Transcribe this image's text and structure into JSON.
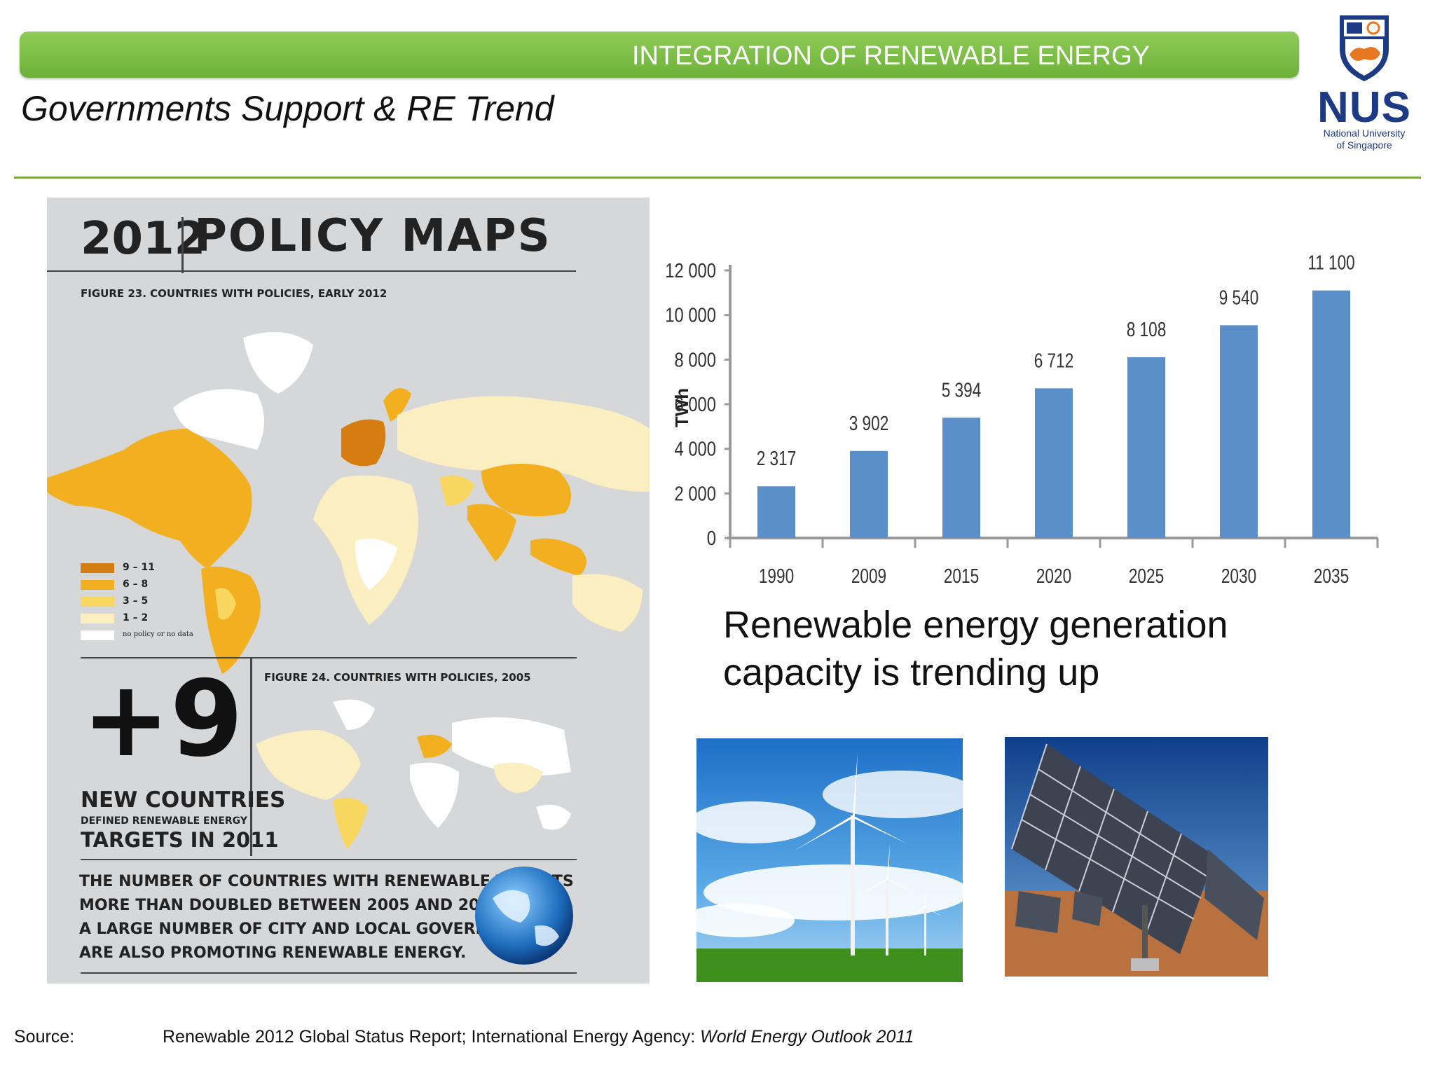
{
  "header": {
    "banner_title": "INTEGRATION OF RENEWABLE ENERGY",
    "subtitle": "Governments Support & RE Trend"
  },
  "logo": {
    "name": "NUS",
    "line1": "National University",
    "line2": "of Singapore",
    "color": "#1d3a84",
    "accent": "#e87722"
  },
  "infographic": {
    "year": "2012",
    "title": "POLICY MAPS",
    "figure23": "FIGURE 23. COUNTRIES WITH POLICIES, EARLY 2012",
    "legend": [
      {
        "label": "9 – 11",
        "color": "#d67d12"
      },
      {
        "label": "6 – 8",
        "color": "#f2b020"
      },
      {
        "label": "3 – 5",
        "color": "#f8d760"
      },
      {
        "label": "1 – 2",
        "color": "#fbeec0"
      },
      {
        "label": "no policy or no data",
        "color": "#ffffff"
      }
    ],
    "big_number": "+9",
    "new_countries": "NEW COUNTRIES",
    "defined": "DEFINED RENEWABLE ENERGY",
    "targets": "TARGETS IN 2011",
    "figure24": "FIGURE 24. COUNTRIES WITH POLICIES, 2005",
    "body_lines": [
      "THE NUMBER OF COUNTRIES WITH RENEWABLE TARGETS",
      "MORE THAN DOUBLED BETWEEN 2005 AND 2012.",
      "A LARGE NUMBER OF CITY AND LOCAL GOVERNMENTS",
      "ARE ALSO PROMOTING RENEWABLE ENERGY."
    ]
  },
  "chart_data": {
    "type": "bar",
    "categories": [
      "1990",
      "2009",
      "2015",
      "2020",
      "2025",
      "2030",
      "2035"
    ],
    "values": [
      2317,
      3902,
      5394,
      6712,
      8108,
      9540,
      11100
    ],
    "value_labels": [
      "2 317",
      "3 902",
      "5 394",
      "6 712",
      "8 108",
      "9 540",
      "11 100"
    ],
    "ylabel": "TWh",
    "yticks": [
      "0",
      "2 000",
      "4 000",
      "6 000",
      "8 000",
      "10 000",
      "12 000"
    ],
    "ylim": [
      0,
      12000
    ],
    "bar_color": "#5b8fc9",
    "grid": false
  },
  "caption": "Renewable energy generation capacity is trending up",
  "source": {
    "label": "Source:",
    "text": "Renewable 2012 Global Status Report;  International Energy Agency: ",
    "italic": "World Energy Outlook 2011"
  }
}
